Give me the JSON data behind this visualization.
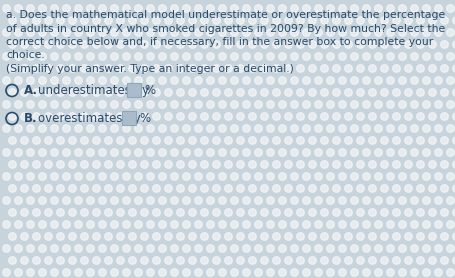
{
  "title_text_lines": [
    "a. Does the mathematical model underestimate or overestimate the percentage",
    "of adults in country X who smoked cigarettes in 2009? By how much? Select the",
    "correct choice below and, if necessary, fill in the answer box to complete your",
    "choice.",
    "(Simplify your answer. Type an integer or a decimal.)"
  ],
  "option_a_label": "A.",
  "option_a_text": "underestimates by",
  "option_b_label": "B.",
  "option_b_text": "overestimates by",
  "background_base": "#c8d4dc",
  "bg_dot_color": "#ddeaf0",
  "text_color": "#2a4a6a",
  "radio_color": "#2a4a6a",
  "box_fill_color": "#aabccc",
  "box_edge_color": "#8aaabb",
  "title_fontsize": 7.8,
  "option_fontsize": 8.5,
  "bold_label_fontsize": 8.5
}
